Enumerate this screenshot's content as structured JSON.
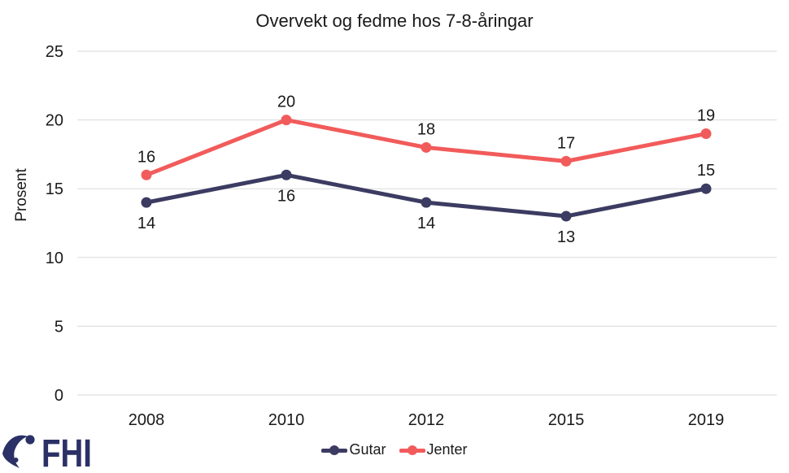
{
  "title": "Overvekt og fedme hos 7-8-åringar",
  "chart_data": {
    "type": "line",
    "categories": [
      "2008",
      "2010",
      "2012",
      "2015",
      "2019"
    ],
    "series": [
      {
        "name": "Gutar",
        "values": [
          14,
          16,
          14,
          13,
          15
        ],
        "color": "#3C3B62",
        "label_positions": [
          "below",
          "below",
          "below",
          "below",
          "above"
        ]
      },
      {
        "name": "Jenter",
        "values": [
          16,
          20,
          18,
          17,
          19
        ],
        "color": "#F25B5B",
        "label_positions": [
          "above",
          "above",
          "above",
          "above",
          "above"
        ]
      }
    ],
    "title": "Overvekt og fedme hos 7-8-åringar",
    "xlabel": "",
    "ylabel": "Prosent",
    "ylim": [
      0,
      25
    ],
    "yticks": [
      0,
      5,
      10,
      15,
      20,
      25
    ],
    "grid": "horizontal",
    "gridline_color": "#DADADA",
    "text_color": "#1a1a1a",
    "legend_position": "bottom"
  },
  "footer": {
    "logo_text": "FHI",
    "logo_color": "#2B3166"
  }
}
